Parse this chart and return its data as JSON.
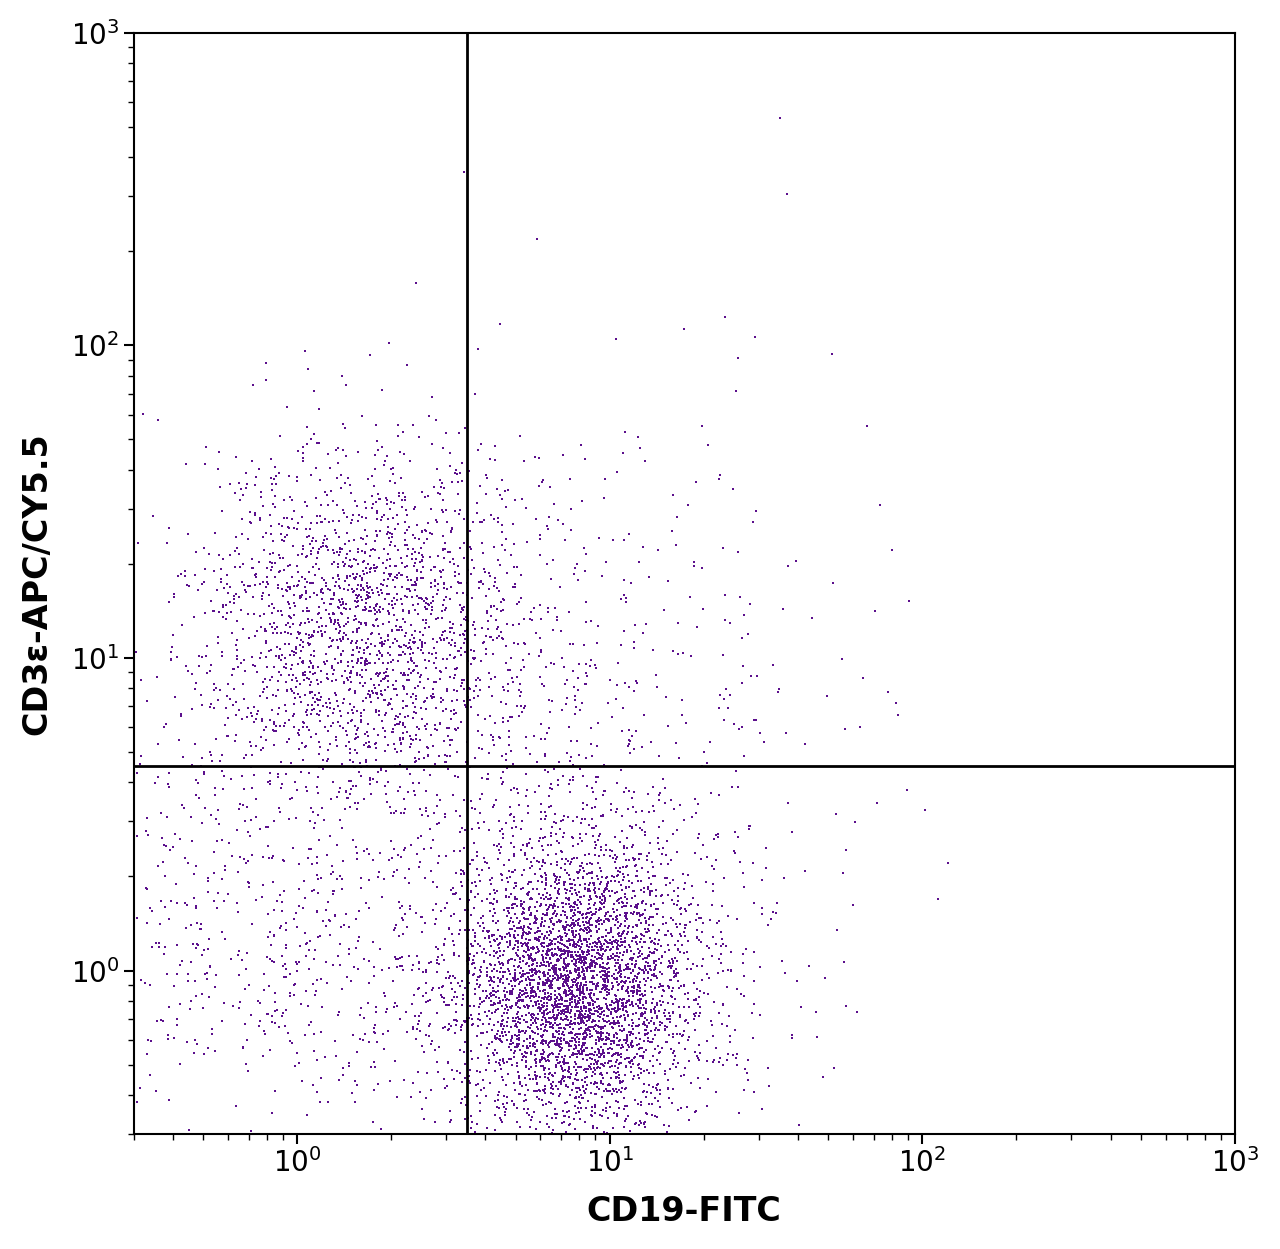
{
  "xlabel": "CD19-FITC",
  "ylabel": "CD3ε-APC/CY5.5",
  "xlim": [
    0.3,
    1000
  ],
  "ylim": [
    0.3,
    1000
  ],
  "dot_color": "#5B0F8C",
  "dot_size": 4,
  "dot_alpha": 1.0,
  "gate_x": 3.5,
  "gate_y": 4.5,
  "background_color": "#ffffff",
  "xlabel_fontsize": 24,
  "ylabel_fontsize": 24,
  "tick_fontsize": 20,
  "seed": 42,
  "populations": {
    "cd3pos_cd19neg": {
      "n": 2000,
      "x_center_log": 0.2,
      "x_spread_log": 0.28,
      "y_center_log": 1.1,
      "y_spread_log": 0.28
    },
    "cd19pos_cd3neg_dense": {
      "n": 3500,
      "x_center_log": 0.9,
      "x_spread_log": 0.18,
      "y_center_log": -0.05,
      "y_spread_log": 0.22
    },
    "cd19pos_cd3neg_spread": {
      "n": 1000,
      "x_center_log": 0.9,
      "x_spread_log": 0.35,
      "y_center_log": 0.1,
      "y_spread_log": 0.5
    },
    "double_neg": {
      "n": 700,
      "x_center_log": -0.1,
      "x_spread_log": 0.38,
      "y_center_log": 0.1,
      "y_spread_log": 0.35
    },
    "scattered_upper_right": {
      "n": 350,
      "x_center_log": 0.8,
      "x_spread_log": 0.5,
      "y_center_log": 1.0,
      "y_spread_log": 0.55
    }
  }
}
